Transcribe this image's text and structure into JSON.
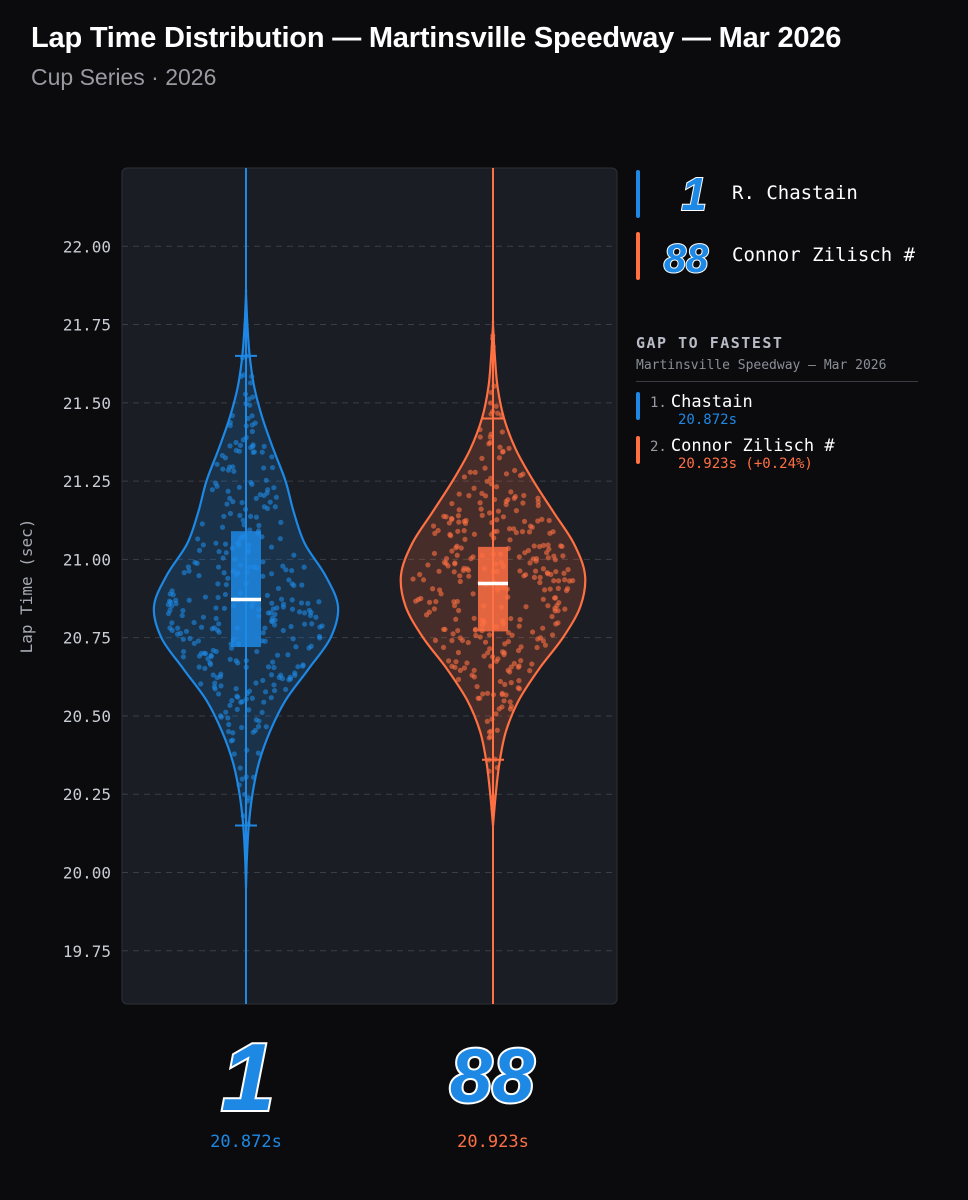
{
  "header": {
    "title": "Lap Time Distribution — Martinsville Speedway — Mar 2026",
    "subtitle": "Cup Series · 2026"
  },
  "colors": {
    "background": "#0b0b0d",
    "plot_bg": "#1a1d23",
    "series_1": "#1e88e5",
    "series_2": "#ff7043",
    "median_line": "#ffffff",
    "badge_fill": "#1e88e5"
  },
  "legend": {
    "items": [
      {
        "number": "1",
        "name": "R. Chastain",
        "color": "#1e88e5"
      },
      {
        "number": "88",
        "name": "Connor Zilisch #",
        "color": "#ff7043"
      }
    ]
  },
  "gap_panel": {
    "title": "GAP TO FASTEST",
    "subtitle": "Martinsville Speedway – Mar 2026",
    "entries": [
      {
        "rank": "1.",
        "name": "Chastain",
        "time": "20.872s",
        "color": "#1e88e5"
      },
      {
        "rank": "2.",
        "name": "Connor Zilisch #",
        "time": "20.923s (+0.24%)",
        "color": "#ff7043"
      }
    ]
  },
  "bottom_labels": [
    {
      "number": "1",
      "value": "20.872s",
      "color": "#1e88e5"
    },
    {
      "number": "88",
      "value": "20.923s",
      "color": "#ff7043"
    }
  ],
  "chart_data": {
    "type": "violin",
    "title": "Lap Time Distribution — Martinsville Speedway — Mar 2026",
    "subtitle": "Cup Series · 2026",
    "ylabel": "Lap Time (sec)",
    "xlabel": "",
    "ylim": [
      19.58,
      22.25
    ],
    "yticks": [
      19.75,
      20.0,
      20.25,
      20.5,
      20.75,
      21.0,
      21.25,
      21.5,
      21.75,
      22.0
    ],
    "ytick_labels": [
      "19.75",
      "20.00",
      "20.25",
      "20.50",
      "20.75",
      "21.00",
      "21.25",
      "21.50",
      "21.75",
      "22.00"
    ],
    "grid": true,
    "legend_position": "right",
    "series": [
      {
        "name": "R. Chastain",
        "median": 20.872,
        "q1": 20.72,
        "q3": 21.09,
        "whisker_low": 20.15,
        "whisker_high": 21.65,
        "min": 19.58,
        "max": 22.25,
        "density": [
          [
            19.95,
            0.0
          ],
          [
            20.05,
            0.01
          ],
          [
            20.15,
            0.03
          ],
          [
            20.25,
            0.07
          ],
          [
            20.35,
            0.14
          ],
          [
            20.45,
            0.26
          ],
          [
            20.55,
            0.43
          ],
          [
            20.65,
            0.68
          ],
          [
            20.75,
            0.92
          ],
          [
            20.85,
            1.0
          ],
          [
            20.95,
            0.86
          ],
          [
            21.05,
            0.64
          ],
          [
            21.15,
            0.52
          ],
          [
            21.25,
            0.43
          ],
          [
            21.35,
            0.3
          ],
          [
            21.45,
            0.18
          ],
          [
            21.55,
            0.09
          ],
          [
            21.65,
            0.04
          ],
          [
            21.75,
            0.015
          ],
          [
            21.85,
            0.0
          ]
        ]
      },
      {
        "name": "Connor Zilisch #",
        "median": 20.923,
        "q1": 20.77,
        "q3": 21.04,
        "whisker_low": 20.36,
        "whisker_high": 21.45,
        "min": 19.58,
        "max": 22.25,
        "density": [
          [
            20.15,
            0.0
          ],
          [
            20.25,
            0.03
          ],
          [
            20.35,
            0.07
          ],
          [
            20.45,
            0.14
          ],
          [
            20.55,
            0.28
          ],
          [
            20.65,
            0.5
          ],
          [
            20.75,
            0.76
          ],
          [
            20.85,
            0.95
          ],
          [
            20.95,
            1.0
          ],
          [
            21.05,
            0.88
          ],
          [
            21.15,
            0.66
          ],
          [
            21.25,
            0.44
          ],
          [
            21.35,
            0.25
          ],
          [
            21.45,
            0.12
          ],
          [
            21.55,
            0.05
          ],
          [
            21.65,
            0.02
          ],
          [
            21.75,
            0.0
          ]
        ]
      }
    ]
  }
}
